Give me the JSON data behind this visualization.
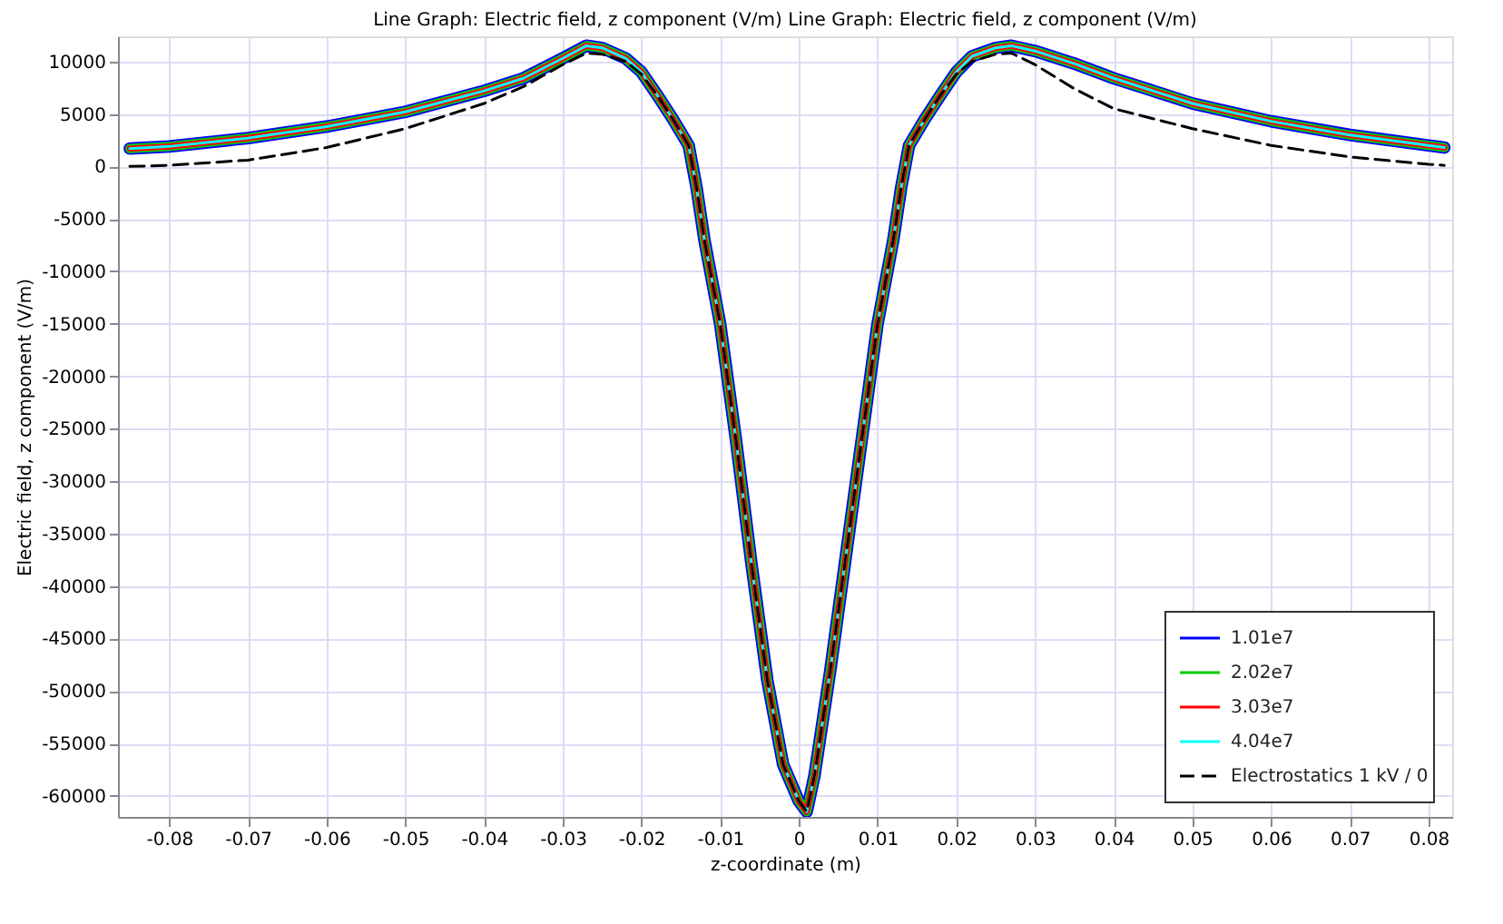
{
  "chart_data": {
    "type": "line",
    "title": "Line Graph: Electric field, z component (V/m)  Line Graph: Electric field, z component (V/m)",
    "xlabel": "z-coordinate (m)",
    "ylabel": "Electric field, z component (V/m)",
    "x": [
      -0.085,
      -0.08,
      -0.07,
      -0.06,
      -0.05,
      -0.04,
      -0.035,
      -0.03,
      -0.027,
      -0.025,
      -0.022,
      -0.02,
      -0.018,
      -0.016,
      -0.014,
      -0.013,
      -0.012,
      -0.01,
      -0.008,
      -0.006,
      -0.004,
      -0.002,
      0,
      0.001,
      0.002,
      0.004,
      0.006,
      0.008,
      0.01,
      0.012,
      0.013,
      0.014,
      0.016,
      0.018,
      0.02,
      0.022,
      0.025,
      0.027,
      0.03,
      0.035,
      0.04,
      0.05,
      0.06,
      0.07,
      0.08,
      0.082
    ],
    "series": [
      {
        "name": "1.01e7",
        "color": "#0000ff",
        "values": [
          1700,
          1900,
          2700,
          3800,
          5200,
          7200,
          8400,
          10300,
          11500,
          11300,
          10300,
          9000,
          6800,
          4500,
          2000,
          -2000,
          -7000,
          -15000,
          -26000,
          -38000,
          -49000,
          -57000,
          -60500,
          -61500,
          -58000,
          -48000,
          -37000,
          -26000,
          -15000,
          -7000,
          -2000,
          2000,
          4500,
          6800,
          9000,
          10500,
          11300,
          11500,
          11000,
          9800,
          8400,
          6000,
          4300,
          3000,
          2000,
          1800
        ]
      },
      {
        "name": "2.02e7",
        "color": "#00cc00",
        "values": [
          1700,
          1900,
          2700,
          3800,
          5200,
          7200,
          8400,
          10300,
          11500,
          11300,
          10300,
          9000,
          6800,
          4500,
          2000,
          -2000,
          -7000,
          -15000,
          -26000,
          -38000,
          -49000,
          -57000,
          -60500,
          -61500,
          -58000,
          -48000,
          -37000,
          -26000,
          -15000,
          -7000,
          -2000,
          2000,
          4500,
          6800,
          9000,
          10500,
          11300,
          11500,
          11000,
          9800,
          8400,
          6000,
          4300,
          3000,
          2000,
          1800
        ]
      },
      {
        "name": "3.03e7",
        "color": "#ff0000",
        "values": [
          1700,
          1900,
          2700,
          3800,
          5200,
          7200,
          8400,
          10300,
          11500,
          11300,
          10300,
          9000,
          6800,
          4500,
          2000,
          -2000,
          -7000,
          -15000,
          -26000,
          -38000,
          -49000,
          -57000,
          -60500,
          -61500,
          -58000,
          -48000,
          -37000,
          -26000,
          -15000,
          -7000,
          -2000,
          2000,
          4500,
          6800,
          9000,
          10500,
          11300,
          11500,
          11000,
          9800,
          8400,
          6000,
          4300,
          3000,
          2000,
          1800
        ]
      },
      {
        "name": "4.04e7",
        "color": "#00ffff",
        "values": [
          1700,
          1900,
          2700,
          3800,
          5200,
          7200,
          8400,
          10300,
          11500,
          11300,
          10300,
          9000,
          6800,
          4500,
          2000,
          -2000,
          -7000,
          -15000,
          -26000,
          -38000,
          -49000,
          -57000,
          -60500,
          -61500,
          -58000,
          -48000,
          -37000,
          -26000,
          -15000,
          -7000,
          -2000,
          2000,
          4500,
          6800,
          9000,
          10500,
          11300,
          11500,
          11000,
          9800,
          8400,
          6000,
          4300,
          3000,
          2000,
          1800
        ]
      },
      {
        "name": "Electrostatics 1 kV / 0",
        "color": "#000000",
        "line_style": "dashed",
        "values": [
          0,
          100,
          600,
          1800,
          3600,
          6000,
          7600,
          9700,
          10800,
          10700,
          10000,
          8800,
          6800,
          4500,
          2000,
          -2000,
          -7000,
          -15000,
          -26000,
          -38000,
          -49000,
          -57000,
          -60500,
          -61500,
          -58000,
          -48000,
          -37000,
          -26000,
          -15000,
          -7000,
          -2000,
          2000,
          4500,
          6800,
          8800,
          10000,
          10700,
          10800,
          9700,
          7400,
          5500,
          3600,
          2000,
          900,
          200,
          100
        ]
      }
    ],
    "xlim": [
      -0.0865,
      0.083
    ],
    "ylim": [
      -62000,
      12400
    ],
    "xticks": [
      -0.08,
      -0.07,
      -0.06,
      -0.05,
      -0.04,
      -0.03,
      -0.02,
      -0.01,
      0,
      0.01,
      0.02,
      0.03,
      0.04,
      0.05,
      0.06,
      0.07,
      0.08
    ],
    "yticks": [
      -60000,
      -55000,
      -50000,
      -45000,
      -40000,
      -35000,
      -30000,
      -25000,
      -20000,
      -15000,
      -10000,
      -5000,
      0,
      5000,
      10000
    ],
    "grid": true,
    "legend": "bottom right",
    "line_style": "solid",
    "marker": "none"
  }
}
